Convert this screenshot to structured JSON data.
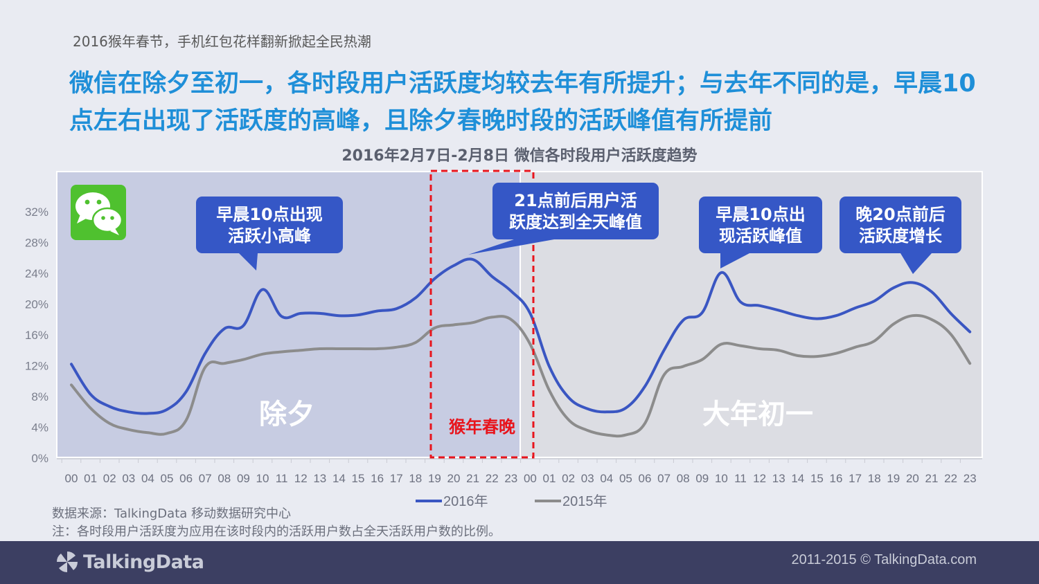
{
  "header": {
    "subtitle": "2016猴年春节，手机红包花样翻新掀起全民热潮",
    "headline": "微信在除夕至初一，各时段用户活跃度均较去年有所提升；与去年不同的是，早晨10点左右出现了活跃度的高峰，且除夕春晚时段的活跃峰值有所提前"
  },
  "chart_data": {
    "type": "line",
    "title": "2016年2月7日-2月8日 微信各时段用户活跃度趋势",
    "categories": [
      "00",
      "01",
      "02",
      "03",
      "04",
      "05",
      "06",
      "07",
      "08",
      "09",
      "10",
      "11",
      "12",
      "13",
      "14",
      "15",
      "16",
      "17",
      "18",
      "19",
      "20",
      "21",
      "22",
      "23",
      "00",
      "01",
      "02",
      "03",
      "04",
      "05",
      "06",
      "07",
      "08",
      "09",
      "10",
      "11",
      "12",
      "13",
      "14",
      "15",
      "16",
      "17",
      "18",
      "19",
      "20",
      "21",
      "22",
      "23"
    ],
    "ylim": [
      0,
      32
    ],
    "yticks": [
      "0%",
      "4%",
      "8%",
      "12%",
      "16%",
      "20%",
      "24%",
      "28%",
      "32%"
    ],
    "series": [
      {
        "name": "2016年",
        "color": "#3a56c2",
        "values": [
          12.2,
          8.3,
          6.7,
          6.0,
          5.8,
          6.3,
          8.6,
          13.6,
          16.8,
          17.2,
          21.9,
          18.4,
          18.8,
          18.8,
          18.5,
          18.6,
          19.1,
          19.4,
          20.8,
          23.3,
          25.0,
          25.8,
          23.6,
          21.7,
          18.8,
          11.9,
          7.9,
          6.4,
          6.0,
          6.5,
          9.3,
          14.0,
          17.9,
          18.9,
          24.1,
          20.3,
          19.8,
          19.2,
          18.5,
          18.1,
          18.5,
          19.5,
          20.4,
          22.1,
          22.8,
          21.6,
          18.8,
          16.4
        ]
      },
      {
        "name": "2015年",
        "color": "#8c8c8c",
        "values": [
          9.5,
          6.5,
          4.5,
          3.7,
          3.3,
          3.2,
          4.9,
          11.8,
          12.3,
          12.8,
          13.5,
          13.8,
          14.0,
          14.2,
          14.2,
          14.2,
          14.2,
          14.4,
          15.0,
          16.9,
          17.3,
          17.6,
          18.3,
          18.0,
          14.8,
          8.8,
          5.0,
          3.6,
          3.0,
          3.0,
          4.5,
          10.8,
          11.9,
          12.8,
          14.8,
          14.6,
          14.2,
          14.0,
          13.3,
          13.2,
          13.6,
          14.4,
          15.2,
          17.4,
          18.5,
          18.0,
          16.1,
          12.3
        ]
      }
    ],
    "regions": [
      {
        "label": "除夕"
      },
      {
        "label": "大年初一"
      }
    ],
    "highlight": {
      "label": "猴年春晚",
      "color": "#e8141c"
    },
    "annotations": [
      {
        "lines": [
          "早晨10点出现",
          "活跃小高峰"
        ]
      },
      {
        "lines": [
          "21点前后用户活",
          "跃度达到全天峰值"
        ]
      },
      {
        "lines": [
          "早晨10点出",
          "现活跃峰值"
        ]
      },
      {
        "lines": [
          "晚20点前后",
          "活跃度增长"
        ]
      }
    ]
  },
  "notes": {
    "source": "数据来源：TalkingData 移动数据研究中心",
    "note": "注：各时段用户活跃度为应用在该时段内的活跃用户数占全天活跃用户数的比例。"
  },
  "footer": {
    "logo_text": "TalkingData",
    "copyright": "2011-2015 © TalkingData.com"
  },
  "colors": {
    "headline": "#1f8fd8",
    "callout": "#3557c6",
    "eve_bg": "#c7cce2",
    "newyear_bg": "#dcdde3",
    "footer_bg": "#3c3f62",
    "wechat_green": "#4fc12f"
  }
}
